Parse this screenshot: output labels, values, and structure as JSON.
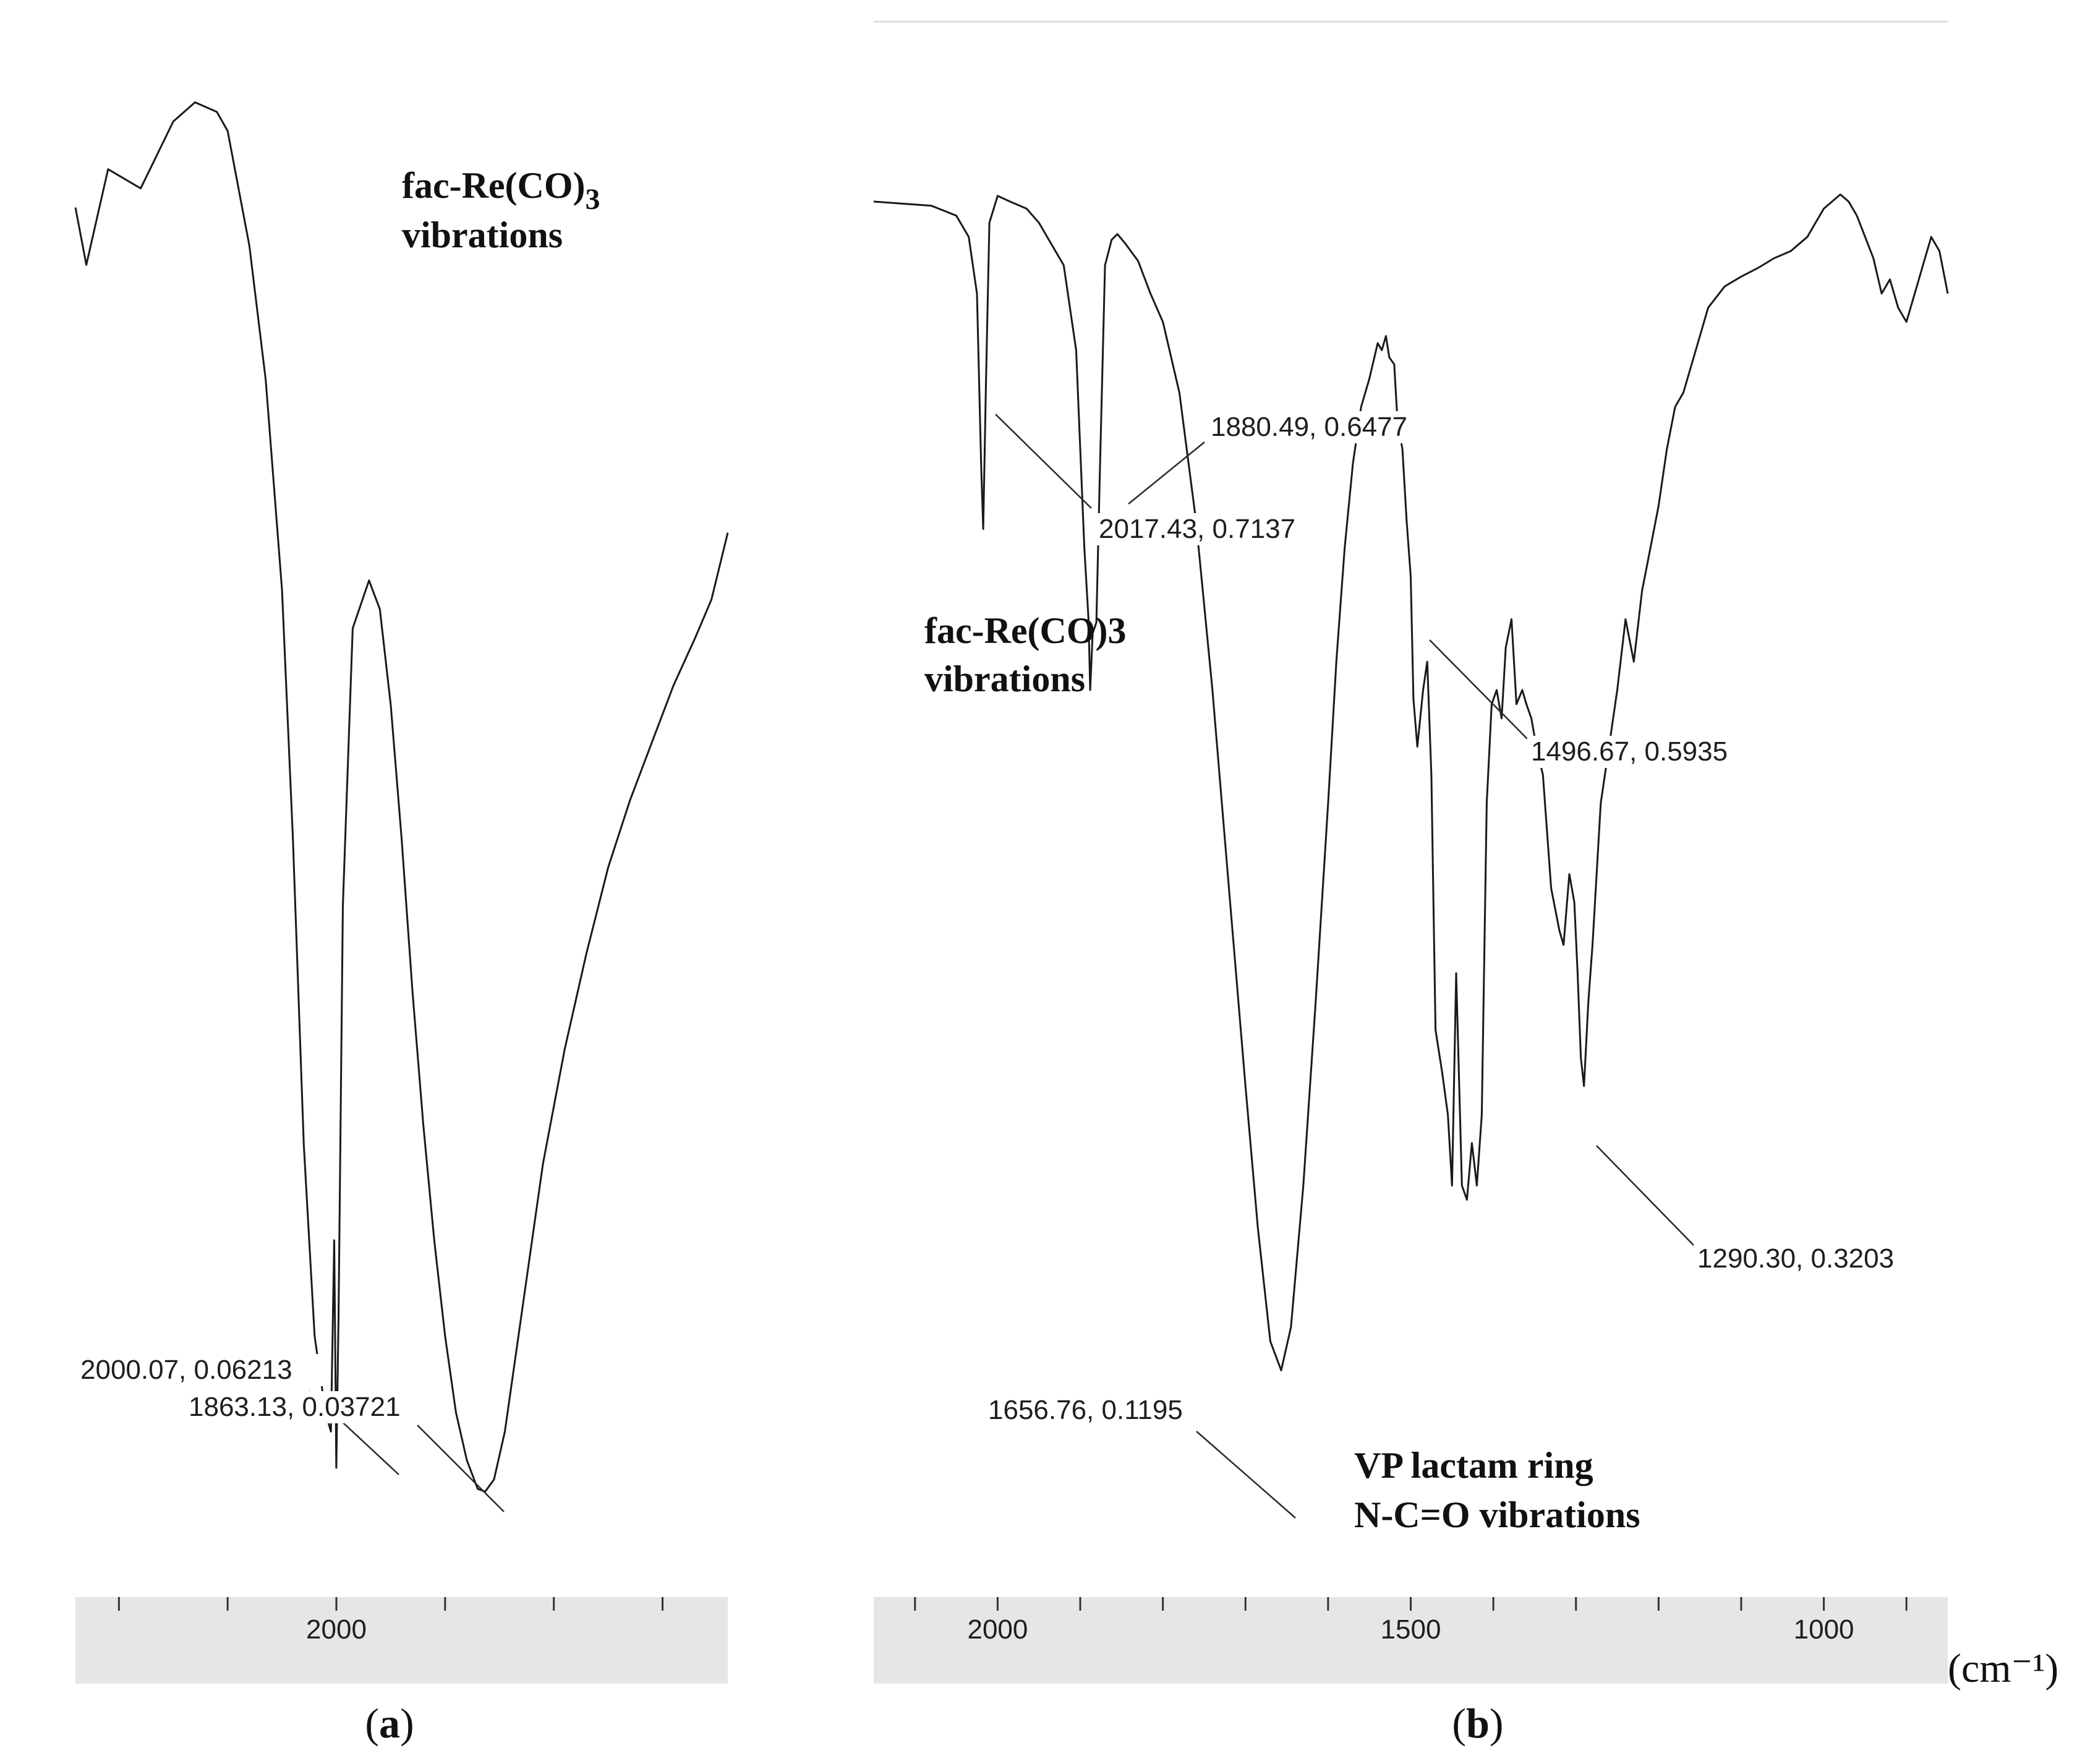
{
  "chart_data": [
    {
      "type": "line",
      "panel_label": "a",
      "xlabel": "",
      "ylabel": "",
      "x_unit": "(cm⁻¹)",
      "x_reversed": true,
      "xlim": [
        2240,
        1640
      ],
      "ylim": [
        0.0,
        1.5
      ],
      "x_ticks": [
        2000
      ],
      "x_minor_ticks": [
        2200,
        2100,
        1900,
        1800,
        1700
      ],
      "grid": false,
      "annotations": [
        {
          "text": "fac-Re(CO)",
          "sub": "3",
          "line2": "vibrations"
        }
      ],
      "peaks": [
        {
          "label": "2000.07, 0.06213",
          "x": 2000.07,
          "y": 0.06213
        },
        {
          "label": "1863.13, 0.03721",
          "x": 1863.13,
          "y": 0.03721
        }
      ],
      "series": [
        {
          "x": [
            2240,
            2230,
            2210,
            2180,
            2150,
            2130,
            2110,
            2100,
            2080,
            2065,
            2050,
            2040,
            2030,
            2020,
            2010,
            2005,
            2002,
            2000.07,
            1998,
            1994,
            1985,
            1970,
            1960,
            1950,
            1940,
            1930,
            1920,
            1910,
            1900,
            1890,
            1880,
            1870,
            1863.13,
            1855,
            1845,
            1830,
            1810,
            1790,
            1770,
            1750,
            1730,
            1710,
            1690,
            1670,
            1655,
            1640
          ],
          "y": [
            1.38,
            1.32,
            1.42,
            1.4,
            1.47,
            1.49,
            1.48,
            1.46,
            1.34,
            1.2,
            0.98,
            0.72,
            0.4,
            0.2,
            0.12,
            0.1,
            0.3,
            0.06213,
            0.22,
            0.65,
            0.94,
            0.99,
            0.96,
            0.86,
            0.72,
            0.56,
            0.42,
            0.3,
            0.2,
            0.12,
            0.07,
            0.04,
            0.03721,
            0.05,
            0.1,
            0.22,
            0.38,
            0.5,
            0.6,
            0.69,
            0.76,
            0.82,
            0.88,
            0.93,
            0.97,
            1.04
          ]
        }
      ]
    },
    {
      "type": "line",
      "panel_label": "b",
      "xlabel": "",
      "ylabel": "",
      "x_unit": "(cm⁻¹)",
      "x_reversed": true,
      "xlim": [
        2150,
        850
      ],
      "ylim": [
        0.0,
        1.0
      ],
      "x_ticks": [
        2000,
        1500,
        1000
      ],
      "x_minor_ticks": [
        2100,
        1900,
        1800,
        1700,
        1600,
        1400,
        1300,
        1200,
        1100,
        900
      ],
      "grid": false,
      "annotations": [
        {
          "text": "fac-Re(CO)3",
          "line2": "vibrations"
        },
        {
          "text": "VP lactam ring",
          "line2": "N-C=O vibrations"
        }
      ],
      "peaks": [
        {
          "label": "2017.43, 0.7137",
          "x": 2017.43,
          "y": 0.7137
        },
        {
          "label": "1880.49, 0.6477",
          "x": 1880.49,
          "y": 0.6477
        },
        {
          "label": "1656.76, 0.1195",
          "x": 1656.76,
          "y": 0.1195
        },
        {
          "label": "1496.67, 0.5935",
          "x": 1496.67,
          "y": 0.5935
        },
        {
          "label": "1290.30, 0.3203",
          "x": 1290.3,
          "y": 0.3203
        }
      ],
      "series": [
        {
          "x": [
            2150,
            2080,
            2050,
            2035,
            2025,
            2020,
            2017.43,
            2014,
            2010,
            2000,
            1985,
            1965,
            1950,
            1935,
            1920,
            1905,
            1895,
            1890,
            1888,
            1885,
            1880.49,
            1876,
            1870,
            1862,
            1855,
            1845,
            1830,
            1815,
            1800,
            1780,
            1760,
            1740,
            1720,
            1700,
            1685,
            1670,
            1656.76,
            1645,
            1630,
            1615,
            1600,
            1590,
            1580,
            1570,
            1560,
            1550,
            1540,
            1535,
            1530,
            1526,
            1520,
            1516,
            1510,
            1505,
            1500,
            1496.67,
            1492,
            1485,
            1480,
            1475,
            1470,
            1462,
            1455,
            1450,
            1445,
            1438,
            1432,
            1426,
            1420,
            1414,
            1408,
            1402,
            1396,
            1390,
            1385,
            1378,
            1372,
            1365,
            1360,
            1354,
            1348,
            1340,
            1330,
            1320,
            1315,
            1308,
            1302,
            1298,
            1294,
            1290.3,
            1285,
            1280,
            1270,
            1260,
            1250,
            1240,
            1230,
            1220,
            1210,
            1200,
            1190,
            1180,
            1170,
            1160,
            1150,
            1140,
            1120,
            1100,
            1080,
            1060,
            1040,
            1020,
            1010,
            1000,
            990,
            980,
            970,
            960,
            950,
            940,
            930,
            920,
            910,
            900,
            890,
            880,
            870,
            860,
            850
          ],
          "y": [
            0.945,
            0.942,
            0.935,
            0.92,
            0.88,
            0.76,
            0.7137,
            0.82,
            0.93,
            0.949,
            0.945,
            0.94,
            0.93,
            0.915,
            0.9,
            0.84,
            0.7,
            0.65,
            0.6,
            0.64,
            0.6477,
            0.76,
            0.9,
            0.918,
            0.922,
            0.915,
            0.903,
            0.88,
            0.86,
            0.81,
            0.72,
            0.6,
            0.46,
            0.32,
            0.22,
            0.14,
            0.1195,
            0.15,
            0.25,
            0.38,
            0.52,
            0.62,
            0.7,
            0.76,
            0.8,
            0.82,
            0.845,
            0.84,
            0.85,
            0.835,
            0.83,
            0.79,
            0.77,
            0.72,
            0.68,
            0.5935,
            0.56,
            0.6,
            0.62,
            0.54,
            0.36,
            0.33,
            0.3,
            0.25,
            0.4,
            0.25,
            0.24,
            0.28,
            0.25,
            0.3,
            0.52,
            0.59,
            0.6,
            0.58,
            0.63,
            0.65,
            0.59,
            0.6,
            0.59,
            0.58,
            0.56,
            0.54,
            0.46,
            0.43,
            0.42,
            0.47,
            0.45,
            0.4,
            0.34,
            0.3203,
            0.38,
            0.42,
            0.52,
            0.56,
            0.6,
            0.65,
            0.62,
            0.67,
            0.7,
            0.73,
            0.77,
            0.8,
            0.81,
            0.83,
            0.85,
            0.87,
            0.885,
            0.892,
            0.898,
            0.905,
            0.91,
            0.92,
            0.93,
            0.94,
            0.945,
            0.95,
            0.945,
            0.935,
            0.92,
            0.905,
            0.88,
            0.89,
            0.87,
            0.86,
            0.88,
            0.9,
            0.92,
            0.91,
            0.88
          ]
        }
      ]
    }
  ]
}
